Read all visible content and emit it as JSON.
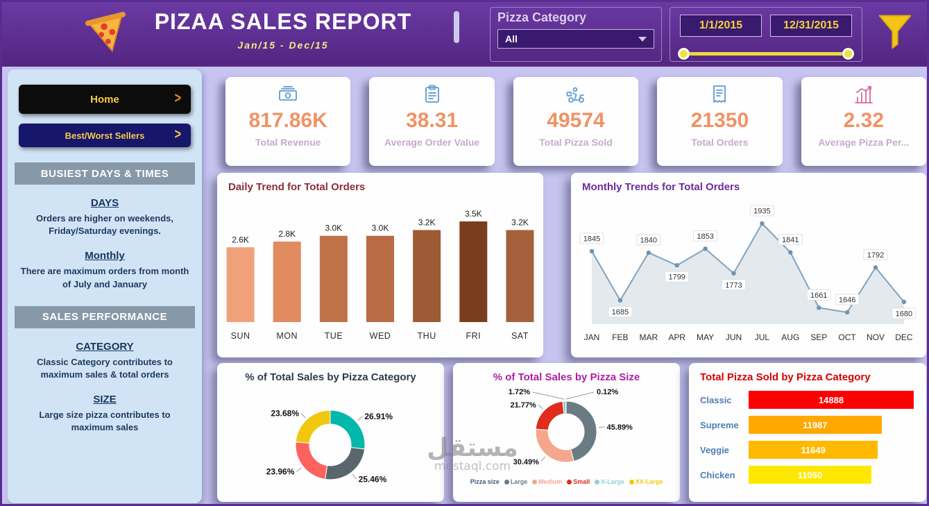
{
  "header": {
    "title": "PIZAA SALES REPORT",
    "subtitle": "Jan/15 - Dec/15",
    "category_filter": {
      "label": "Pizza Category",
      "selected": "All"
    },
    "date_slicer": {
      "start": "1/1/2015",
      "end": "12/31/2015"
    }
  },
  "sidebar": {
    "nav": [
      {
        "label": "Home"
      },
      {
        "label": "Best/Worst Sellers"
      }
    ],
    "sections": [
      {
        "header": "BUSIEST DAYS & TIMES",
        "blocks": [
          {
            "heading": "DAYS",
            "text": "Orders are higher on weekends, Friday/Saturday evenings."
          },
          {
            "heading": "Monthly",
            "text": "There are maximum orders from month of July and January"
          }
        ]
      },
      {
        "header": "SALES PERFORMANCE",
        "blocks": [
          {
            "heading": "CATEGORY",
            "text": "Classic Category contributes to maximum sales & total orders"
          },
          {
            "heading": "SIZE",
            "text": "Large size pizza contributes to maximum sales"
          }
        ]
      }
    ]
  },
  "kpis": [
    {
      "value": "817.86K",
      "label": "Total Revenue",
      "icon": "money-icon"
    },
    {
      "value": "38.31",
      "label": "Average Order Value",
      "icon": "clipboard-icon"
    },
    {
      "value": "49574",
      "label": "Total Pizza Sold",
      "icon": "delivery-icon"
    },
    {
      "value": "21350",
      "label": "Total Orders",
      "icon": "receipt-icon"
    },
    {
      "value": "2.32",
      "label": "Average Pizza Per...",
      "icon": "chart-icon"
    }
  ],
  "watermark": {
    "arabic": "مستقل",
    "domain": "mostaql.com"
  },
  "palette": {
    "header_purple": "#5b2c90",
    "background": "#c7c4f0",
    "sidebar_blue": "#d0e4f6",
    "kpi_value_orange": "#f09263",
    "kpi_icon_blue": "#5b9bd5",
    "accent_yellow": "#f3d23b"
  },
  "chart_data": [
    {
      "id": "daily-orders-bar",
      "type": "bar",
      "title": "Daily Trend for Total Orders",
      "categories": [
        "SUN",
        "MON",
        "TUE",
        "WED",
        "THU",
        "FRI",
        "SAT"
      ],
      "values": [
        2.6,
        2.8,
        3.0,
        3.0,
        3.2,
        3.5,
        3.2
      ],
      "value_labels": [
        "2.6K",
        "2.8K",
        "3.0K",
        "3.0K",
        "3.2K",
        "3.5K",
        "3.2K"
      ],
      "bar_colors": [
        "#f0a17b",
        "#e28a60",
        "#c17148",
        "#b96b43",
        "#9d5a35",
        "#7a3e1e",
        "#a4613c"
      ],
      "ylim": [
        0,
        3.5
      ],
      "grid": false,
      "legend": "none"
    },
    {
      "id": "monthly-orders-area",
      "type": "area",
      "title": "Monthly Trends for Total Orders",
      "categories": [
        "JAN",
        "FEB",
        "MAR",
        "APR",
        "MAY",
        "JUN",
        "JUL",
        "AUG",
        "SEP",
        "OCT",
        "NOV",
        "DEC"
      ],
      "values": [
        1845,
        1685,
        1840,
        1799,
        1853,
        1773,
        1935,
        1841,
        1661,
        1646,
        1792,
        1680
      ],
      "label_positions": [
        "above",
        "below",
        "above",
        "below",
        "above",
        "below",
        "above",
        "above",
        "above",
        "above",
        "above",
        "below"
      ],
      "ylim": [
        1600,
        1950
      ],
      "line_color": "#7fa3c0",
      "fill_color": "#e3e9ed",
      "point_color": "#6f93b0",
      "grid": false,
      "legend": "none"
    },
    {
      "id": "sales-by-category-donut",
      "type": "pie",
      "title": "% of Total Sales by Pizza Category",
      "slices": [
        {
          "label": "26.91%",
          "value": 26.91,
          "color": "#01b8aa"
        },
        {
          "label": "25.46%",
          "value": 25.46,
          "color": "#5a666e"
        },
        {
          "label": "23.96%",
          "value": 23.96,
          "color": "#fd625e"
        },
        {
          "label": "23.68%",
          "value": 23.68,
          "color": "#f2c80f"
        }
      ],
      "legend": "none"
    },
    {
      "id": "sales-by-size-donut",
      "type": "pie",
      "title": "% of Total Sales by Pizza Size",
      "legend_title": "Pizza size",
      "legend": "bottom",
      "slices": [
        {
          "name": "Large",
          "label": "45.89%",
          "value": 45.89,
          "color": "#6b7b83"
        },
        {
          "name": "Medium",
          "label": "30.49%",
          "value": 30.49,
          "color": "#f4a78c"
        },
        {
          "name": "Small",
          "label": "21.77%",
          "value": 21.77,
          "color": "#e02b1d"
        },
        {
          "name": "X-Large",
          "label": "1.72%",
          "value": 1.72,
          "color": "#8fd0d6"
        },
        {
          "name": "XX-Large",
          "label": "0.12%",
          "value": 0.12,
          "color": "#f2c80f"
        }
      ]
    },
    {
      "id": "pizza-sold-by-category-bars",
      "type": "bar",
      "title": "Total Pizza Sold by Pizza Category",
      "rows": [
        {
          "label": "Classic",
          "value": 14888,
          "color": "#fe0000"
        },
        {
          "label": "Supreme",
          "value": 11987,
          "color": "#ffa800"
        },
        {
          "label": "Veggie",
          "value": 11649,
          "color": "#ffb900"
        },
        {
          "label": "Chicken",
          "value": 11050,
          "color": "#ffe800"
        }
      ],
      "xlim": [
        0,
        14888
      ],
      "legend": "none"
    }
  ]
}
